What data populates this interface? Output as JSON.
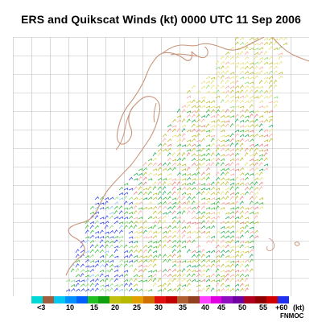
{
  "title": "ERS and Quikscat Winds (kt) 0000 UTC 11 Sep 2006",
  "credit": "FNMOC",
  "colorbar": {
    "colors": [
      "#00d8d8",
      "#a06040",
      "#00c8f0",
      "#0090ff",
      "#0060ff",
      "#20c020",
      "#10a010",
      "#c0c010",
      "#b8b800",
      "#e0a000",
      "#d07000",
      "#e01010",
      "#c00000",
      "#b06030",
      "#904020",
      "#ff40ff",
      "#e000e0",
      "#9010c0",
      "#7000a0",
      "#b00020",
      "#900000",
      "#d00000",
      "#2030f0"
    ],
    "labels": [
      "<3",
      "10",
      "15",
      "20",
      "25",
      "30",
      "35",
      "40",
      "45",
      "50",
      "55",
      "+60",
      "(kt)"
    ]
  },
  "map": {
    "grid_color": "#bfbfbf",
    "coast_color": "#c8947a",
    "barb_colors": [
      "#3a4cf0",
      "#8fc8ff",
      "#40c040",
      "#8ae07a",
      "#c0c030",
      "#e8e078",
      "#ffa8a8",
      "#f08080",
      "#20b060"
    ]
  }
}
